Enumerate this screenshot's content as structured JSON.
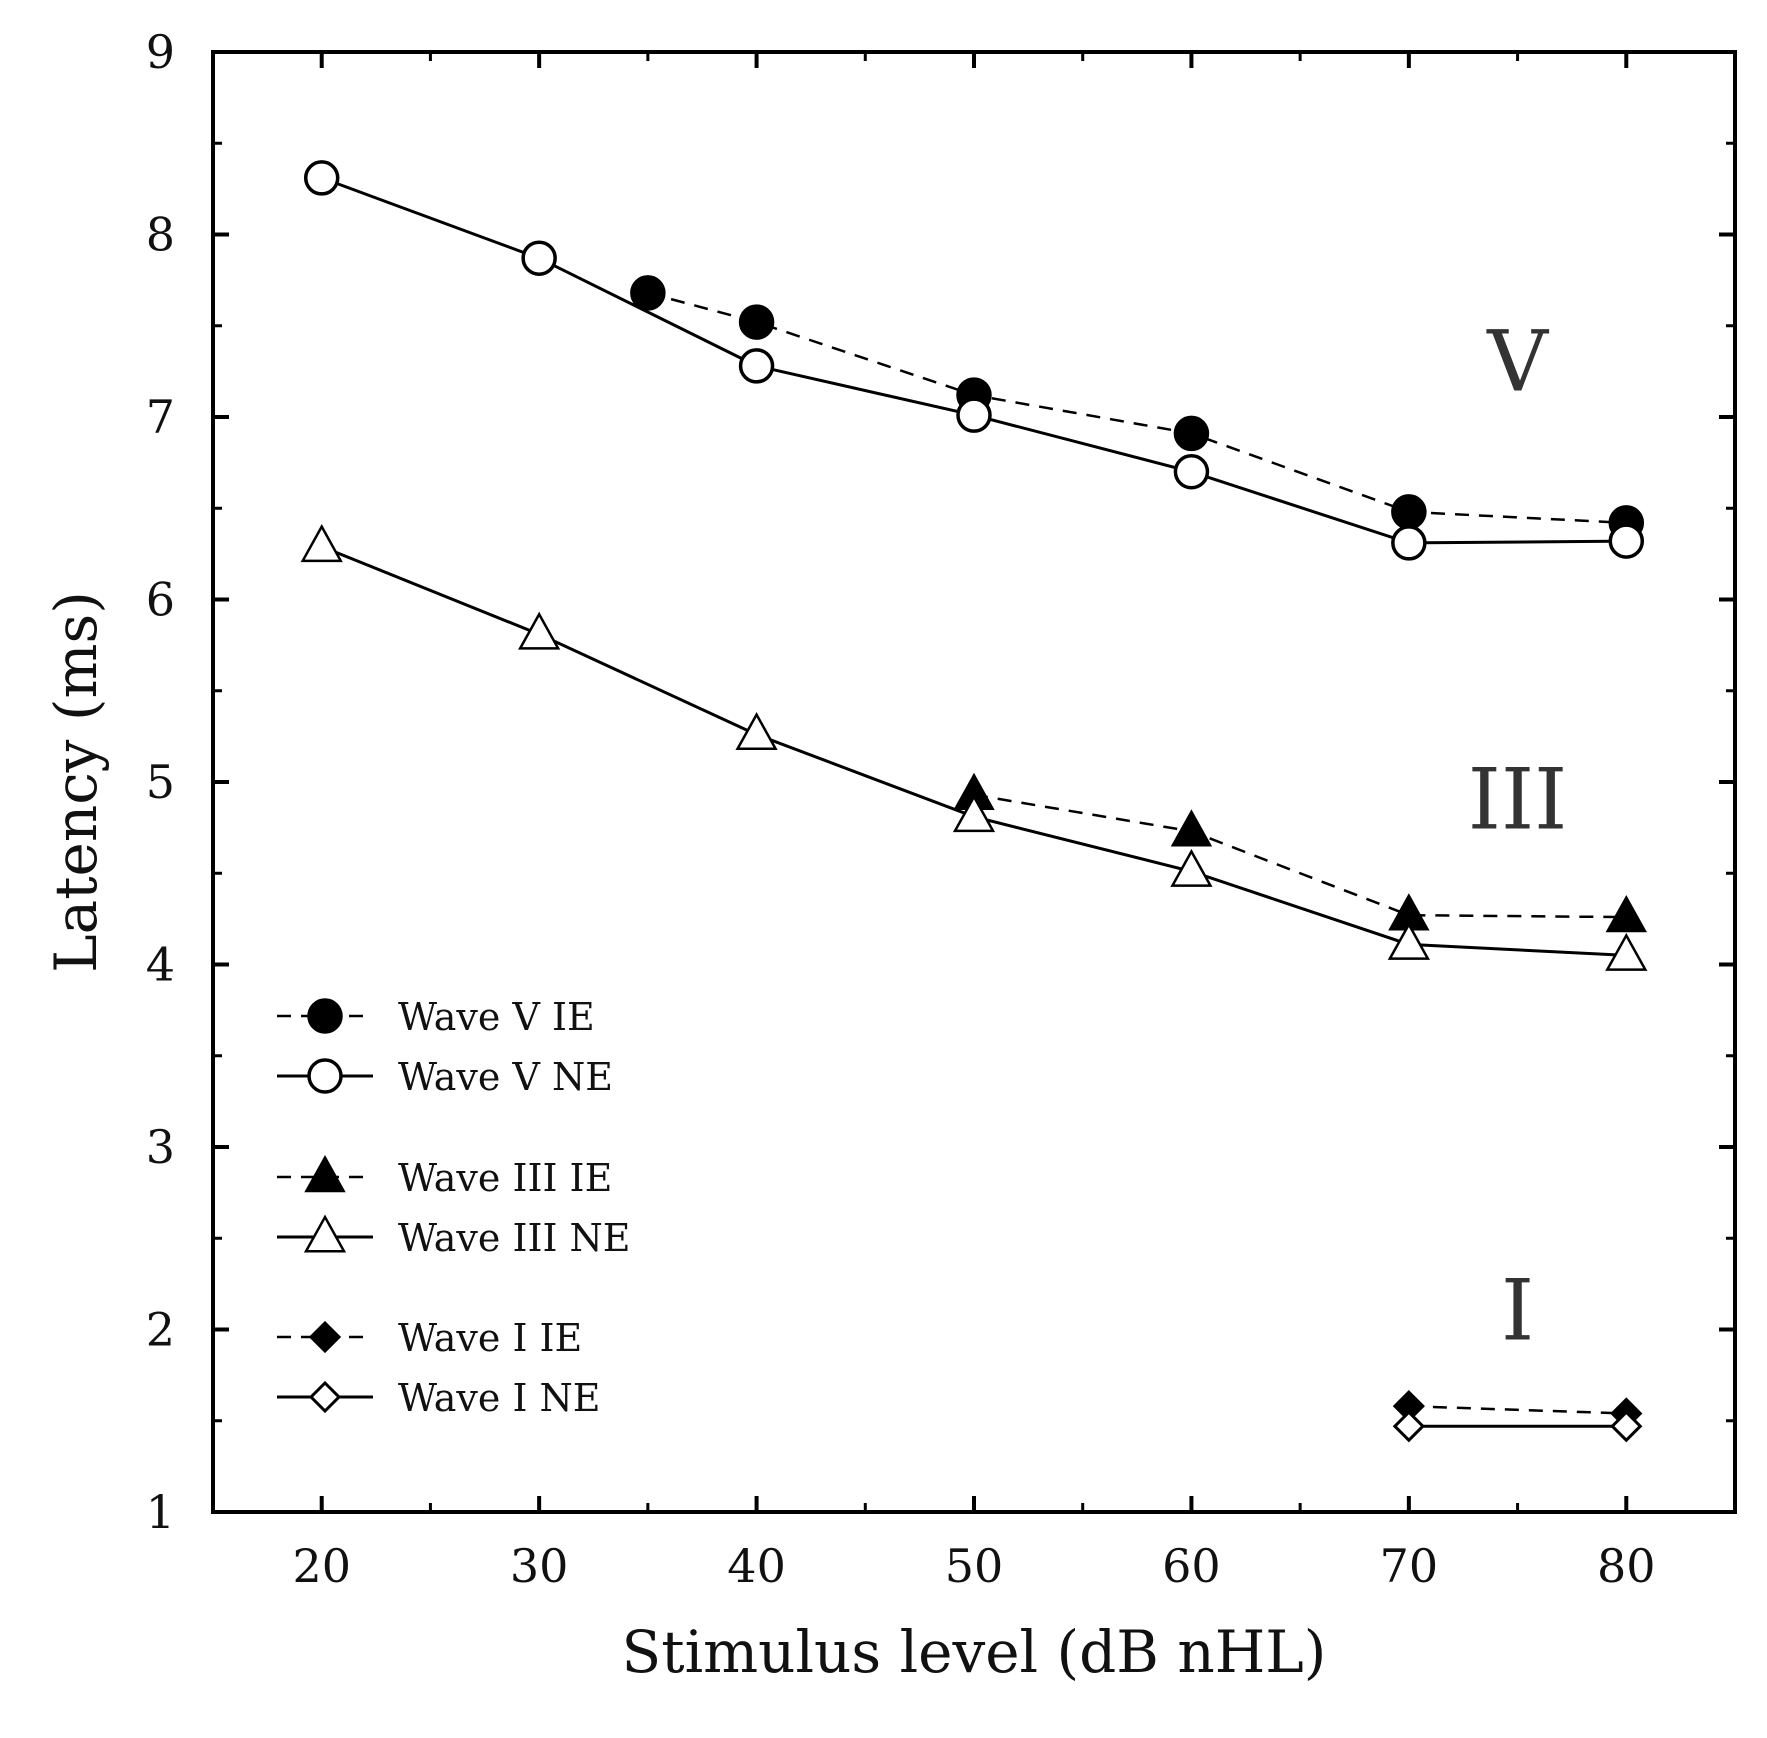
{
  "chart_data": {
    "type": "line",
    "title": "",
    "xlabel": "Stimulus level (dB nHL)",
    "ylabel": "Latency (ms)",
    "xlim": [
      15,
      85
    ],
    "ylim": [
      1,
      9
    ],
    "xticks": [
      20,
      30,
      40,
      50,
      60,
      70,
      80
    ],
    "yticks": [
      1,
      2,
      3,
      4,
      5,
      6,
      7,
      8,
      9
    ],
    "grid": false,
    "legend_position": "bottom-left",
    "series": [
      {
        "name": "Wave V IE",
        "line": "dashed",
        "marker": "circle",
        "filled": true,
        "points": [
          [
            35,
            7.68
          ],
          [
            40,
            7.52
          ],
          [
            50,
            7.12
          ],
          [
            60,
            6.91
          ],
          [
            70,
            6.48
          ],
          [
            80,
            6.42
          ]
        ]
      },
      {
        "name": "Wave V NE",
        "line": "solid",
        "marker": "circle",
        "filled": false,
        "points": [
          [
            20,
            8.31
          ],
          [
            30,
            7.87
          ],
          [
            40,
            7.28
          ],
          [
            50,
            7.01
          ],
          [
            60,
            6.7
          ],
          [
            70,
            6.31
          ],
          [
            80,
            6.32
          ]
        ]
      },
      {
        "name": "Wave III IE",
        "line": "dashed",
        "marker": "triangle",
        "filled": true,
        "points": [
          [
            50,
            4.93
          ],
          [
            60,
            4.73
          ],
          [
            70,
            4.27
          ],
          [
            80,
            4.26
          ]
        ]
      },
      {
        "name": "Wave III NE",
        "line": "solid",
        "marker": "triangle",
        "filled": false,
        "points": [
          [
            20,
            6.29
          ],
          [
            30,
            5.81
          ],
          [
            40,
            5.26
          ],
          [
            50,
            4.81
          ],
          [
            60,
            4.51
          ],
          [
            70,
            4.11
          ],
          [
            80,
            4.05
          ]
        ]
      },
      {
        "name": "Wave I IE",
        "line": "dashed",
        "marker": "diamond",
        "filled": true,
        "points": [
          [
            70,
            1.58
          ],
          [
            80,
            1.54
          ]
        ]
      },
      {
        "name": "Wave I NE",
        "line": "solid",
        "marker": "diamond",
        "filled": false,
        "points": [
          [
            70,
            1.47
          ],
          [
            80,
            1.47
          ]
        ]
      }
    ],
    "annotations": [
      {
        "text": "V",
        "x": 75,
        "y": 7.3
      },
      {
        "text": "III",
        "x": 75,
        "y": 4.9
      },
      {
        "text": "I",
        "x": 75,
        "y": 2.1
      }
    ],
    "legend_groups": [
      [
        "Wave V IE",
        "Wave V NE"
      ],
      [
        "Wave III IE",
        "Wave III NE"
      ],
      [
        "Wave I IE",
        "Wave I NE"
      ]
    ]
  }
}
